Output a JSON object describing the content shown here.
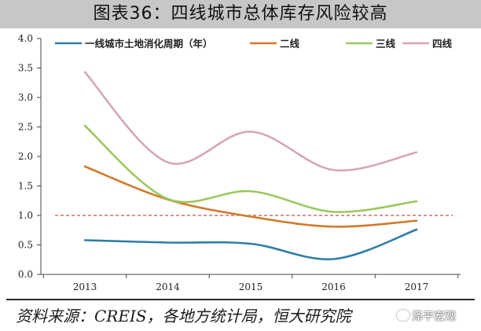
{
  "title": "图表36：四线城市总体库存风险较高",
  "source": "资料来源：CREIS，各地方统计局，恒大研究院",
  "watermark": "泽平宏观",
  "colors": {
    "title_bg": "#c7c7c7",
    "axis": "#444444",
    "reference_line": "#c0504d"
  },
  "chart_data": {
    "type": "line",
    "x": [
      "2013",
      "2014",
      "2015",
      "2016",
      "2017"
    ],
    "ylim": [
      0.0,
      4.0
    ],
    "yticks": [
      "0.0",
      "0.5",
      "1.0",
      "1.5",
      "2.0",
      "2.5",
      "3.0",
      "3.5",
      "4.0"
    ],
    "smooth": true,
    "grid": false,
    "legend_position": "top",
    "reference_line": {
      "y": 1.0,
      "style": "dashed",
      "color": "#c0504d"
    },
    "series": [
      {
        "name": "一线城市土地消化周期（年）",
        "color": "#2f7ea6",
        "values": [
          0.58,
          0.54,
          0.52,
          0.26,
          0.76
        ]
      },
      {
        "name": "二线",
        "color": "#d4792b",
        "values": [
          1.83,
          1.27,
          0.98,
          0.81,
          0.91
        ]
      },
      {
        "name": "三线",
        "color": "#9bc85e",
        "values": [
          2.52,
          1.28,
          1.41,
          1.06,
          1.24
        ]
      },
      {
        "name": "四线",
        "color": "#d5a7b2",
        "values": [
          3.43,
          1.9,
          2.42,
          1.77,
          2.07
        ]
      }
    ]
  }
}
